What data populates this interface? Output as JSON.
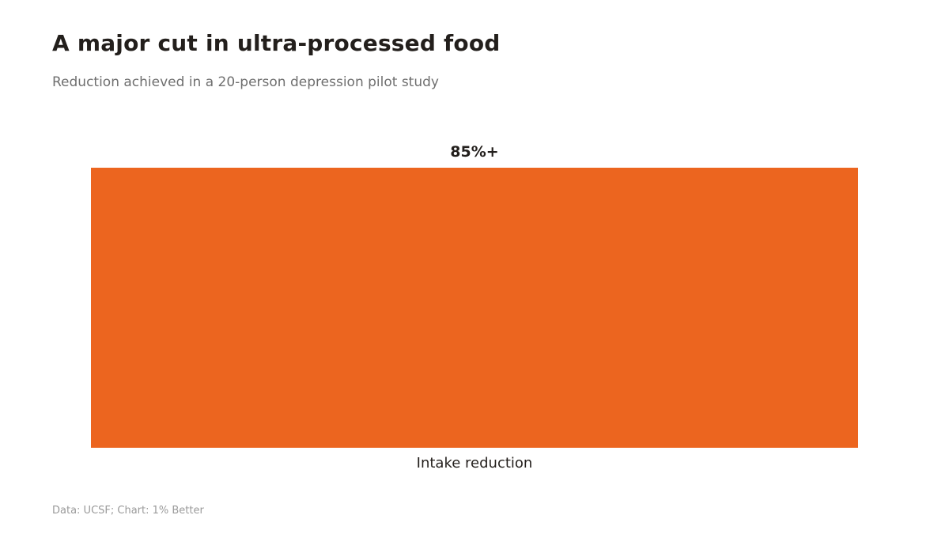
{
  "header": {
    "title": "A major cut in ultra-processed food",
    "subtitle": "Reduction achieved in a 20-person depression pilot study"
  },
  "footer": {
    "source": "Data: UCSF; Chart: 1% Better"
  },
  "chart_data": {
    "type": "bar",
    "categories": [
      "Intake reduction"
    ],
    "values": [
      85
    ],
    "data_labels": [
      "85%+"
    ],
    "title": "A major cut in ultra-processed food",
    "subtitle": "Reduction achieved in a 20-person depression pilot study",
    "xlabel": "",
    "ylabel": "",
    "ylim": [
      0,
      85
    ],
    "grid": false,
    "legend": "none",
    "colors": {
      "bar": "#ec651f",
      "text": "#231f1c",
      "subtitle": "#6f6f6f",
      "source": "#9a9a9a"
    }
  }
}
